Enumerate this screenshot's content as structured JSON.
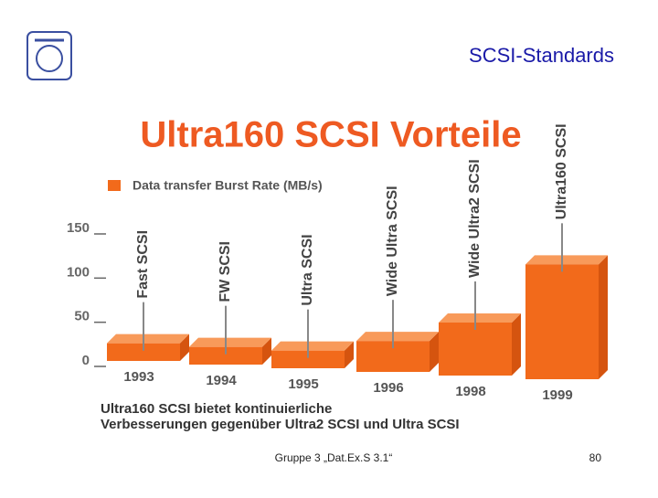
{
  "slide": {
    "title": "SCSI-Standards",
    "footer": "Gruppe 3 „Dat.Ex.S 3.1“",
    "page": "80"
  },
  "chart_data": {
    "type": "bar3d",
    "title": "Ultra160 SCSI Vorteile",
    "series": [
      {
        "name": "Data transfer Burst Rate (MB/s)",
        "color": "#f26a1b",
        "values": [
          20,
          20,
          20,
          35,
          60,
          130
        ]
      }
    ],
    "categories": [
      "1993",
      "1994",
      "1995",
      "1996",
      "1998",
      "1999"
    ],
    "bar_labels": [
      "Fast SCSI",
      "FW SCSI",
      "Ultra SCSI",
      "Wide Ultra SCSI",
      "Wide Ultra2 SCSI",
      "Ultra160 SCSI"
    ],
    "ylim": [
      0,
      150
    ],
    "yticks": [
      0,
      50,
      100,
      150
    ],
    "caption": [
      "Ultra160 SCSI bietet kontinuierliche",
      "Verbesserungen gegenüber Ultra2 SCSI und Ultra SCSI"
    ]
  }
}
